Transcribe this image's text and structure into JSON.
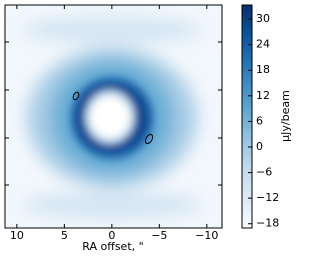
{
  "chart_data": {
    "type": "image",
    "x_label": "RA offset, \"",
    "xlim": [
      11.25,
      -11.6
    ],
    "xticks": [
      10,
      5,
      0,
      {
        "value": -5,
        "label": "−5"
      },
      {
        "value": -10,
        "label": "−10"
      }
    ],
    "colorbar_label": "μJy/beam",
    "clim": [
      -19,
      33.3
    ],
    "cticks": [
      30,
      24,
      18,
      12,
      6,
      0,
      {
        "value": -6,
        "label": "−6"
      },
      {
        "value": -12,
        "label": "−12"
      },
      {
        "value": -18,
        "label": "−18"
      }
    ],
    "colormap": [
      "#f7fbff",
      "#deebf7",
      "#c6dbef",
      "#9ecae1",
      "#6baed6",
      "#4292c6",
      "#2171b5",
      "#08519c",
      "#08306b"
    ]
  }
}
